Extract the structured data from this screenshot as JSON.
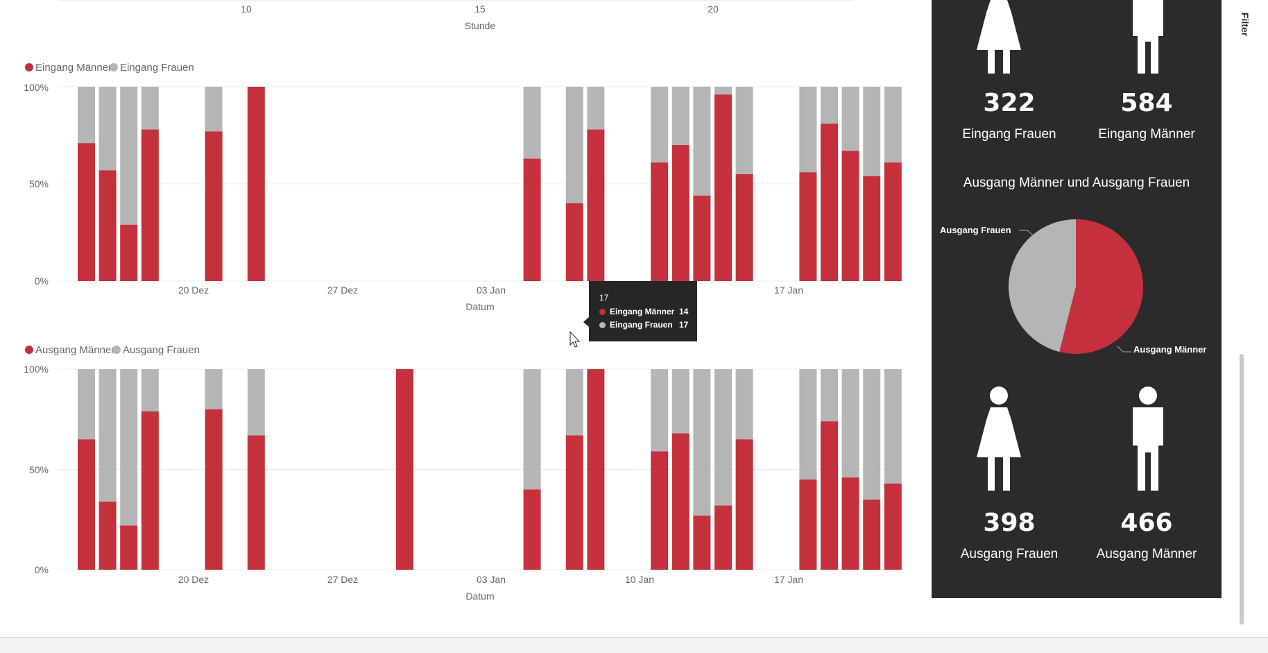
{
  "colors": {
    "maenner": "#c4313d",
    "frauen": "#b5b5b5",
    "panel": "#2b2b2b"
  },
  "top_axis": {
    "ticks": [
      "10",
      "15",
      "20"
    ],
    "title": "Stunde"
  },
  "chart_data": [
    {
      "type": "bar",
      "stacked": "100%",
      "legend": [
        "Eingang Männer",
        "Eingang Frauen"
      ],
      "x_ticks": [
        "20 Dez",
        "27 Dez",
        "03 Jan",
        "17 Jan"
      ],
      "x_title": "Datum",
      "y_ticks": [
        "100%",
        "50%",
        "0%"
      ],
      "bars": [
        {
          "slot": 0,
          "m": 0.71
        },
        {
          "slot": 1,
          "m": 0.57
        },
        {
          "slot": 2,
          "m": 0.29
        },
        {
          "slot": 3,
          "m": 0.78
        },
        {
          "slot": 6,
          "m": 0.77
        },
        {
          "slot": 8,
          "m": 1.0
        },
        {
          "slot": 21,
          "m": 0.63
        },
        {
          "slot": 23,
          "m": 0.4
        },
        {
          "slot": 24,
          "m": 0.78
        },
        {
          "slot": 27,
          "m": 0.61
        },
        {
          "slot": 28,
          "m": 0.7
        },
        {
          "slot": 29,
          "m": 0.44
        },
        {
          "slot": 30,
          "m": 0.96
        },
        {
          "slot": 31,
          "m": 0.55
        },
        {
          "slot": 34,
          "m": 0.56
        },
        {
          "slot": 35,
          "m": 0.81
        },
        {
          "slot": 36,
          "m": 0.67
        },
        {
          "slot": 37,
          "m": 0.54
        },
        {
          "slot": 38,
          "m": 0.61
        }
      ]
    },
    {
      "type": "bar",
      "stacked": "100%",
      "legend": [
        "Ausgang Männer",
        "Ausgang Frauen"
      ],
      "x_ticks": [
        "20 Dez",
        "27 Dez",
        "03 Jan",
        "10 Jan",
        "17 Jan"
      ],
      "x_title": "Datum",
      "y_ticks": [
        "100%",
        "50%",
        "0%"
      ],
      "bars": [
        {
          "slot": 0,
          "m": 0.65
        },
        {
          "slot": 1,
          "m": 0.34
        },
        {
          "slot": 2,
          "m": 0.22
        },
        {
          "slot": 3,
          "m": 0.79
        },
        {
          "slot": 6,
          "m": 0.8
        },
        {
          "slot": 8,
          "m": 0.67
        },
        {
          "slot": 15,
          "m": 1.0
        },
        {
          "slot": 21,
          "m": 0.4
        },
        {
          "slot": 23,
          "m": 0.67
        },
        {
          "slot": 24,
          "m": 1.0
        },
        {
          "slot": 27,
          "m": 0.59
        },
        {
          "slot": 28,
          "m": 0.68
        },
        {
          "slot": 29,
          "m": 0.27
        },
        {
          "slot": 30,
          "m": 0.32
        },
        {
          "slot": 31,
          "m": 0.65
        },
        {
          "slot": 34,
          "m": 0.45
        },
        {
          "slot": 35,
          "m": 0.74
        },
        {
          "slot": 36,
          "m": 0.46
        },
        {
          "slot": 37,
          "m": 0.35
        },
        {
          "slot": 38,
          "m": 0.43
        }
      ]
    },
    {
      "type": "pie",
      "title": "Ausgang Männer und Ausgang Frauen",
      "slices": [
        {
          "name": "Ausgang Männer",
          "value": 466
        },
        {
          "name": "Ausgang Frauen",
          "value": 398
        }
      ]
    }
  ],
  "tooltip": {
    "title": "17",
    "rows": [
      {
        "label": "Eingang Männer",
        "value": "14"
      },
      {
        "label": "Eingang Frauen",
        "value": "17"
      }
    ]
  },
  "panel": {
    "eingang_frauen": {
      "value": "322",
      "label": "Eingang Frauen"
    },
    "eingang_maenner": {
      "value": "584",
      "label": "Eingang Männer"
    },
    "ausgang_frauen": {
      "value": "398",
      "label": "Ausgang Frauen"
    },
    "ausgang_maenner": {
      "value": "466",
      "label": "Ausgang Männer"
    },
    "pie_title": "Ausgang Männer und Ausgang Frauen",
    "pie_label_frauen": "Ausgang Frauen",
    "pie_label_maenner": "Ausgang Männer",
    "female_icon": "woman-icon",
    "male_icon": "man-icon"
  },
  "filter_tab": "Filter"
}
